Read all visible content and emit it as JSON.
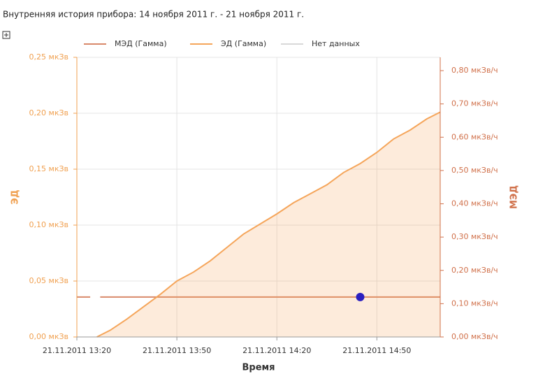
{
  "chart_data": {
    "type": "line",
    "title": "Внутренняя история прибора: 14 ноября 2011 г. - 21 ноября 2011 г.",
    "xlabel": "Время",
    "ylabel": "ЭД",
    "y2label": "МЭД",
    "xlim": [
      "2011-11-21T13:20",
      "2011-11-21T15:09"
    ],
    "xticks": [
      {
        "value": "2011-11-21T13:20",
        "label": "21.11.2011 13:20"
      },
      {
        "value": "2011-11-21T13:50",
        "label": "21.11.2011 13:50"
      },
      {
        "value": "2011-11-21T14:20",
        "label": "21.11.2011 14:20"
      },
      {
        "value": "2011-11-21T14:50",
        "label": "21.11.2011 14:50"
      }
    ],
    "ylim": [
      0,
      0.25
    ],
    "yticks": [
      {
        "value": 0,
        "label": "0,00 мкЗв"
      },
      {
        "value": 0.05,
        "label": "0,05 мкЗв"
      },
      {
        "value": 0.1,
        "label": "0,10 мкЗв"
      },
      {
        "value": 0.15,
        "label": "0,15 мкЗв"
      },
      {
        "value": 0.2,
        "label": "0,20 мкЗв"
      },
      {
        "value": 0.25,
        "label": "0,25 мкЗв"
      }
    ],
    "y2lim": [
      0,
      0.84
    ],
    "y2ticks": [
      {
        "value": 0,
        "label": "0,00 мкЗв/ч"
      },
      {
        "value": 0.1,
        "label": "0,10 мкЗв/ч"
      },
      {
        "value": 0.2,
        "label": "0,20 мкЗв/ч"
      },
      {
        "value": 0.3,
        "label": "0,30 мкЗв/ч"
      },
      {
        "value": 0.4,
        "label": "0,40 мкЗв/ч"
      },
      {
        "value": 0.5,
        "label": "0,50 мкЗв/ч"
      },
      {
        "value": 0.6,
        "label": "0,60 мкЗв/ч"
      },
      {
        "value": 0.7,
        "label": "0,70 мкЗв/ч"
      },
      {
        "value": 0.8,
        "label": "0,80 мкЗв/ч"
      }
    ],
    "grid": true,
    "series": [
      {
        "name": "МЭД (Гамма)",
        "color": "#d9896a",
        "axis": "y2",
        "x": [
          "2011-11-21T13:20",
          "2011-11-21T13:24",
          "2011-11-21T13:25",
          "2011-11-21T13:27",
          "2011-11-21T15:09"
        ],
        "values": [
          0.12,
          0.12,
          null,
          0.12,
          0.12
        ]
      },
      {
        "name": "ЭД (Гамма)",
        "color": "#f5a55a",
        "area": true,
        "x": [
          "2011-11-21T13:26",
          "2011-11-21T13:30",
          "2011-11-21T13:35",
          "2011-11-21T13:40",
          "2011-11-21T13:45",
          "2011-11-21T13:50",
          "2011-11-21T13:55",
          "2011-11-21T14:00",
          "2011-11-21T14:05",
          "2011-11-21T14:10",
          "2011-11-21T14:15",
          "2011-11-21T14:20",
          "2011-11-21T14:25",
          "2011-11-21T14:30",
          "2011-11-21T14:35",
          "2011-11-21T14:40",
          "2011-11-21T14:45",
          "2011-11-21T14:50",
          "2011-11-21T14:55",
          "2011-11-21T15:00",
          "2011-11-21T15:05",
          "2011-11-21T15:09"
        ],
        "values": [
          0,
          0.006,
          0.016,
          0.027,
          0.038,
          0.05,
          0.058,
          0.068,
          0.08,
          0.092,
          0.101,
          0.11,
          0.12,
          0.128,
          0.136,
          0.147,
          0.155,
          0.165,
          0.177,
          0.185,
          0.195,
          0.201
        ]
      },
      {
        "name": "Нет данных",
        "color": "#d8d8d8",
        "x": [],
        "values": []
      }
    ],
    "marker": {
      "x": "2011-11-21T14:45",
      "value": 0.12,
      "axis": "y2",
      "color": "#2a1fc0"
    }
  }
}
